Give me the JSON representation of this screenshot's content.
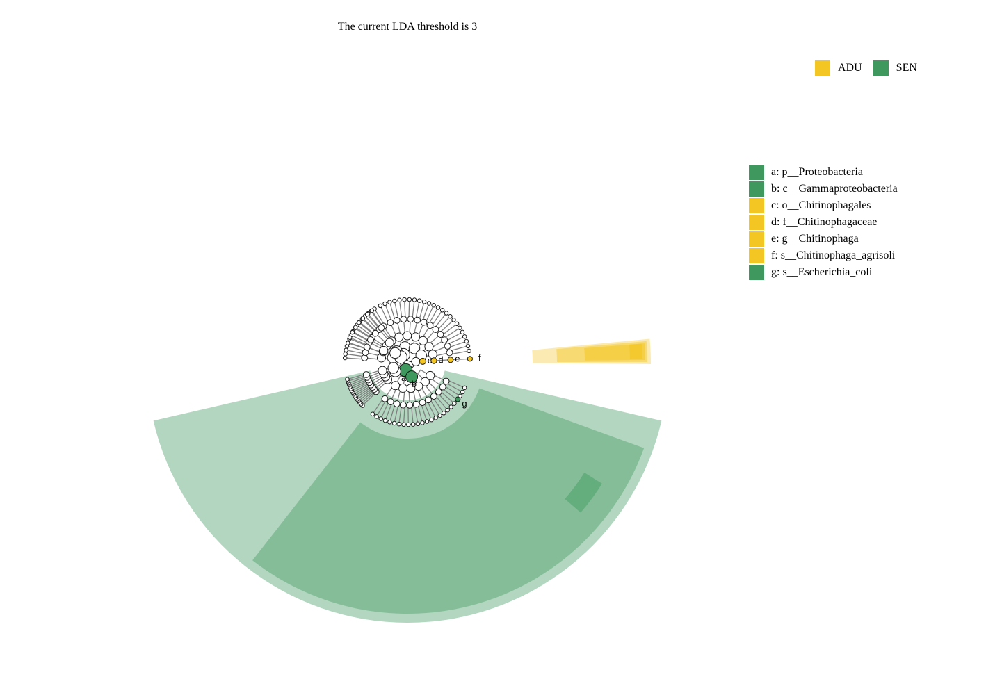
{
  "title": "The current LDA threshold is 3",
  "colors": {
    "ADU": "#f3c623",
    "SEN": "#3f985e"
  },
  "group_legend": [
    {
      "label": "ADU",
      "color": "#f3c623"
    },
    {
      "label": "SEN",
      "color": "#3f985e"
    }
  ],
  "clade_legend": [
    {
      "letter": "a",
      "text": "a: p__Proteobacteria",
      "color": "#3f985e"
    },
    {
      "letter": "b",
      "text": "b: c__Gammaproteobacteria",
      "color": "#3f985e"
    },
    {
      "letter": "c",
      "text": "c: o__Chitinophagales",
      "color": "#f3c623"
    },
    {
      "letter": "d",
      "text": "d: f__Chitinophagaceae",
      "color": "#f3c623"
    },
    {
      "letter": "e",
      "text": "e: g__Chitinophaga",
      "color": "#f3c623"
    },
    {
      "letter": "f",
      "text": "f: s__Chitinophaga_agrisoli",
      "color": "#f3c623"
    },
    {
      "letter": "g",
      "text": "g: s__Escherichia_coli",
      "color": "#3f985e"
    }
  ],
  "node_labels": {
    "a": "a",
    "b": "b",
    "c": "c",
    "d": "d",
    "e": "e",
    "f": "f",
    "g": "g"
  }
}
